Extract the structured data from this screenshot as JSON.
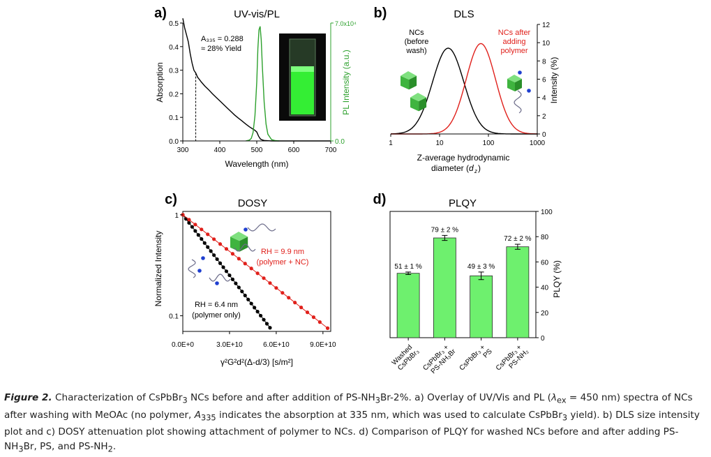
{
  "caption": {
    "label": "Figure 2.",
    "html": "Characterization of CsPbBr<sub>3</sub> NCs before and after addition of PS-NH<sub>3</sub>Br-2%. a) Overlay of UV/Vis and PL (<i>λ</i><sub>ex</sub> = 450 nm) spectra of NCs after washing with MeOAc (no polymer, <i>A</i><sub>335</sub> indicates the absorption at 335 nm, which was used to calculate CsPbBr<sub>3</sub> yield). b) DLS size intensity plot and c) DOSY attenuation plot showing attachment of polymer to NCs. d) Comparison of PLQY for washed NCs before and after adding PS-NH<sub>3</sub>Br, PS, and PS-NH<sub>2</sub>."
  },
  "colors": {
    "black": "#000000",
    "red": "#e0201b",
    "green": "#2ca02c",
    "bar": "#6ef06e",
    "blue": "#1f3fd0"
  },
  "chart_data": [
    {
      "panel": "a)",
      "type": "line",
      "title": "UV-vis/PL",
      "xlabel": "Wavelength (nm)",
      "ylabel": "Absorption",
      "y2label": "PL Intensity (a.u.)",
      "xlim": [
        300,
        700
      ],
      "ylim": [
        0,
        0.5
      ],
      "y2lim": [
        0,
        70000
      ],
      "xticks": [
        "300",
        "400",
        "500",
        "600",
        "700"
      ],
      "yticks": [
        "0.0",
        "0.1",
        "0.2",
        "0.3",
        "0.4",
        "0.5"
      ],
      "y2ticks": [
        "0.0",
        "7.0x10⁴"
      ],
      "annotation": [
        "A₃₃₅ = 0.288",
        "≈ 28% Yield"
      ],
      "marker_x": 335,
      "series": [
        {
          "axis": "left",
          "color": "#000000",
          "x": [
            300,
            305,
            310,
            315,
            320,
            325,
            330,
            335,
            340,
            345,
            350,
            360,
            370,
            380,
            390,
            400,
            410,
            420,
            430,
            440,
            450,
            460,
            470,
            480,
            490,
            495,
            500,
            505,
            510,
            515,
            520,
            530,
            540,
            560,
            600,
            650,
            700
          ],
          "y": [
            0.52,
            0.48,
            0.45,
            0.42,
            0.37,
            0.33,
            0.3,
            0.288,
            0.27,
            0.26,
            0.25,
            0.232,
            0.217,
            0.2,
            0.185,
            0.17,
            0.155,
            0.14,
            0.125,
            0.11,
            0.097,
            0.085,
            0.072,
            0.06,
            0.05,
            0.045,
            0.038,
            0.02,
            0.008,
            0.004,
            0.002,
            0.001,
            0.0,
            0.0,
            0.0,
            0.0,
            0.0
          ]
        },
        {
          "axis": "right",
          "color": "#2ca02c",
          "x": [
            470,
            480,
            485,
            490,
            495,
            500,
            503,
            506,
            509,
            512,
            515,
            520,
            525,
            530,
            540,
            550,
            560
          ],
          "y": [
            0,
            500,
            1500,
            5000,
            15000,
            35000,
            55000,
            66000,
            68000,
            60000,
            45000,
            23000,
            10000,
            4000,
            800,
            200,
            0
          ]
        }
      ]
    },
    {
      "panel": "b)",
      "type": "line",
      "title": "DLS",
      "xlabel": "Z-average hydrodynamic diameter (d_z)",
      "ylabel": "Intensity (%)",
      "xscale": "log",
      "xlim": [
        1,
        1000
      ],
      "ylim": [
        0,
        12
      ],
      "xticks": [
        "1",
        "10",
        "100",
        "1000"
      ],
      "yticks": [
        "0",
        "2",
        "4",
        "6",
        "8",
        "10",
        "12"
      ],
      "labels": [
        {
          "lines": [
            "NCs",
            "(before",
            "wash)"
          ],
          "color": "#000000"
        },
        {
          "lines": [
            "NCs after",
            "adding",
            "polymer"
          ],
          "color": "#e0201b"
        }
      ],
      "series": [
        {
          "name": "NCs (before wash)",
          "color": "#000000",
          "mean": 15,
          "sigma": 0.32,
          "peak": 9.4
        },
        {
          "name": "NCs after adding polymer",
          "color": "#e0201b",
          "mean": 70,
          "sigma": 0.3,
          "peak": 9.9
        }
      ]
    },
    {
      "panel": "c)",
      "type": "scatter",
      "title": "DOSY",
      "xlabel": "γ²G²d²(Δ-d/3) [s/m²]",
      "ylabel": "Normalized Intensity",
      "yscale": "log",
      "xlim": [
        0,
        95000000000.0
      ],
      "ylim": [
        0.07,
        1.08
      ],
      "xticks": [
        {
          "v": 0,
          "t": "0.0E+0"
        },
        {
          "v": 30000000000.0,
          "t": "3.0E+10"
        },
        {
          "v": 60000000000.0,
          "t": "6.0E+10"
        },
        {
          "v": 90000000000.0,
          "t": "9.0E+10"
        }
      ],
      "yticks": [
        {
          "v": 1,
          "t": "1"
        },
        {
          "v": 0.1,
          "t": "0.1"
        }
      ],
      "series": [
        {
          "color": "#000000",
          "label": [
            "RH = 6.4 nm",
            "(polymer only)"
          ],
          "k": 4.6e-11,
          "x": [
            0,
            2000000000.0,
            4000000000.0,
            6000000000.0,
            8000000000.0,
            10000000000.0,
            12000000000.0,
            14000000000.0,
            16000000000.0,
            18000000000.0,
            20000000000.0,
            22000000000.0,
            24000000000.0,
            26000000000.0,
            28000000000.0,
            30000000000.0,
            32000000000.0,
            34000000000.0,
            36000000000.0,
            38000000000.0,
            40000000000.0,
            42000000000.0,
            44000000000.0,
            46000000000.0,
            48000000000.0,
            50000000000.0,
            52000000000.0,
            54000000000.0,
            56000000000.0
          ]
        },
        {
          "color": "#e0201b",
          "label": [
            "RH = 9.9 nm",
            "(polymer + NC)"
          ],
          "k": 2.78e-11,
          "x": [
            0,
            4000000000.0,
            8000000000.0,
            12000000000.0,
            16000000000.0,
            20000000000.0,
            24000000000.0,
            28000000000.0,
            32000000000.0,
            36000000000.0,
            40000000000.0,
            44000000000.0,
            48000000000.0,
            52000000000.0,
            56000000000.0,
            60000000000.0,
            64000000000.0,
            68000000000.0,
            72000000000.0,
            76000000000.0,
            80000000000.0,
            84000000000.0,
            88000000000.0,
            93000000000.0
          ]
        }
      ]
    },
    {
      "panel": "d)",
      "type": "bar",
      "title": "PLQY",
      "ylabel": "PLQY (%)",
      "ylim": [
        0,
        100
      ],
      "yticks": [
        "0",
        "20",
        "40",
        "60",
        "80",
        "100"
      ],
      "categories": [
        [
          "Washed",
          "CsPbBr₃"
        ],
        [
          "CsPbBr₃ +",
          "PS-NH₃Br"
        ],
        [
          "CsPbBr₃ +",
          "PS"
        ],
        [
          "CsPbBr₃ +",
          "PS-NH₂"
        ]
      ],
      "values": [
        51,
        79,
        49,
        72
      ],
      "errors": [
        1,
        2,
        3,
        2
      ],
      "value_labels": [
        "51 ± 1 %",
        "79 ± 2 %",
        "49 ± 3 %",
        "72 ± 2 %"
      ]
    }
  ]
}
